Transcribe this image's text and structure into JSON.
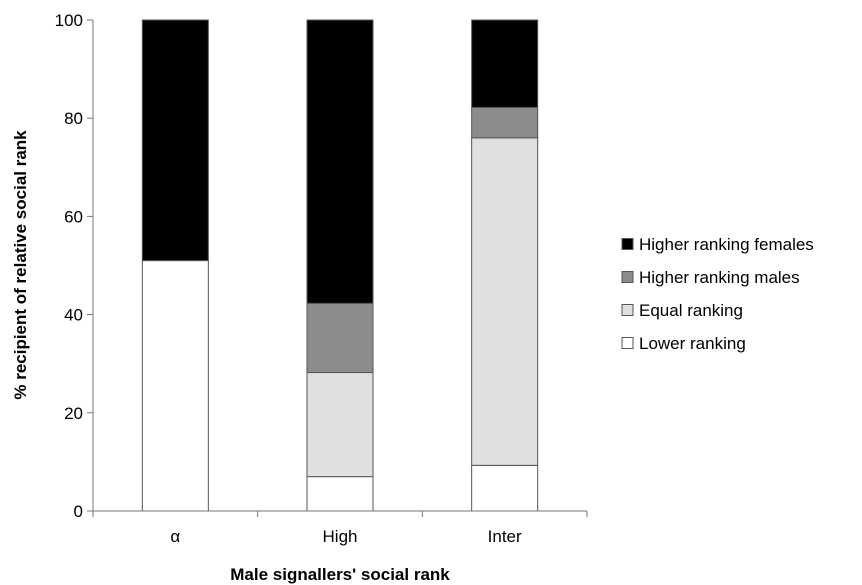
{
  "chart_data": {
    "type": "bar",
    "stacked": true,
    "categories": [
      "α",
      "High",
      "Inter"
    ],
    "series": [
      {
        "name": "Lower ranking",
        "color": "#ffffff",
        "values": [
          51,
          7,
          9.3
        ]
      },
      {
        "name": "Equal ranking",
        "color": "#e0e0e0",
        "values": [
          0,
          21.2,
          66.7
        ]
      },
      {
        "name": "Higher ranking males",
        "color": "#8c8c8c",
        "values": [
          0,
          14.1,
          6.2
        ]
      },
      {
        "name": "Higher ranking females",
        "color": "#000000",
        "values": [
          49,
          57.7,
          17.8
        ]
      }
    ],
    "legend_order": [
      "Higher ranking females",
      "Higher ranking males",
      "Equal ranking",
      "Lower ranking"
    ],
    "xlabel": "Male signallers' social rank",
    "ylabel": "% recipient of  relative  social rank",
    "ylim": [
      0,
      100
    ],
    "yticks": [
      0,
      20,
      40,
      60,
      80,
      100
    ],
    "grid": false,
    "legend_position": "right"
  }
}
